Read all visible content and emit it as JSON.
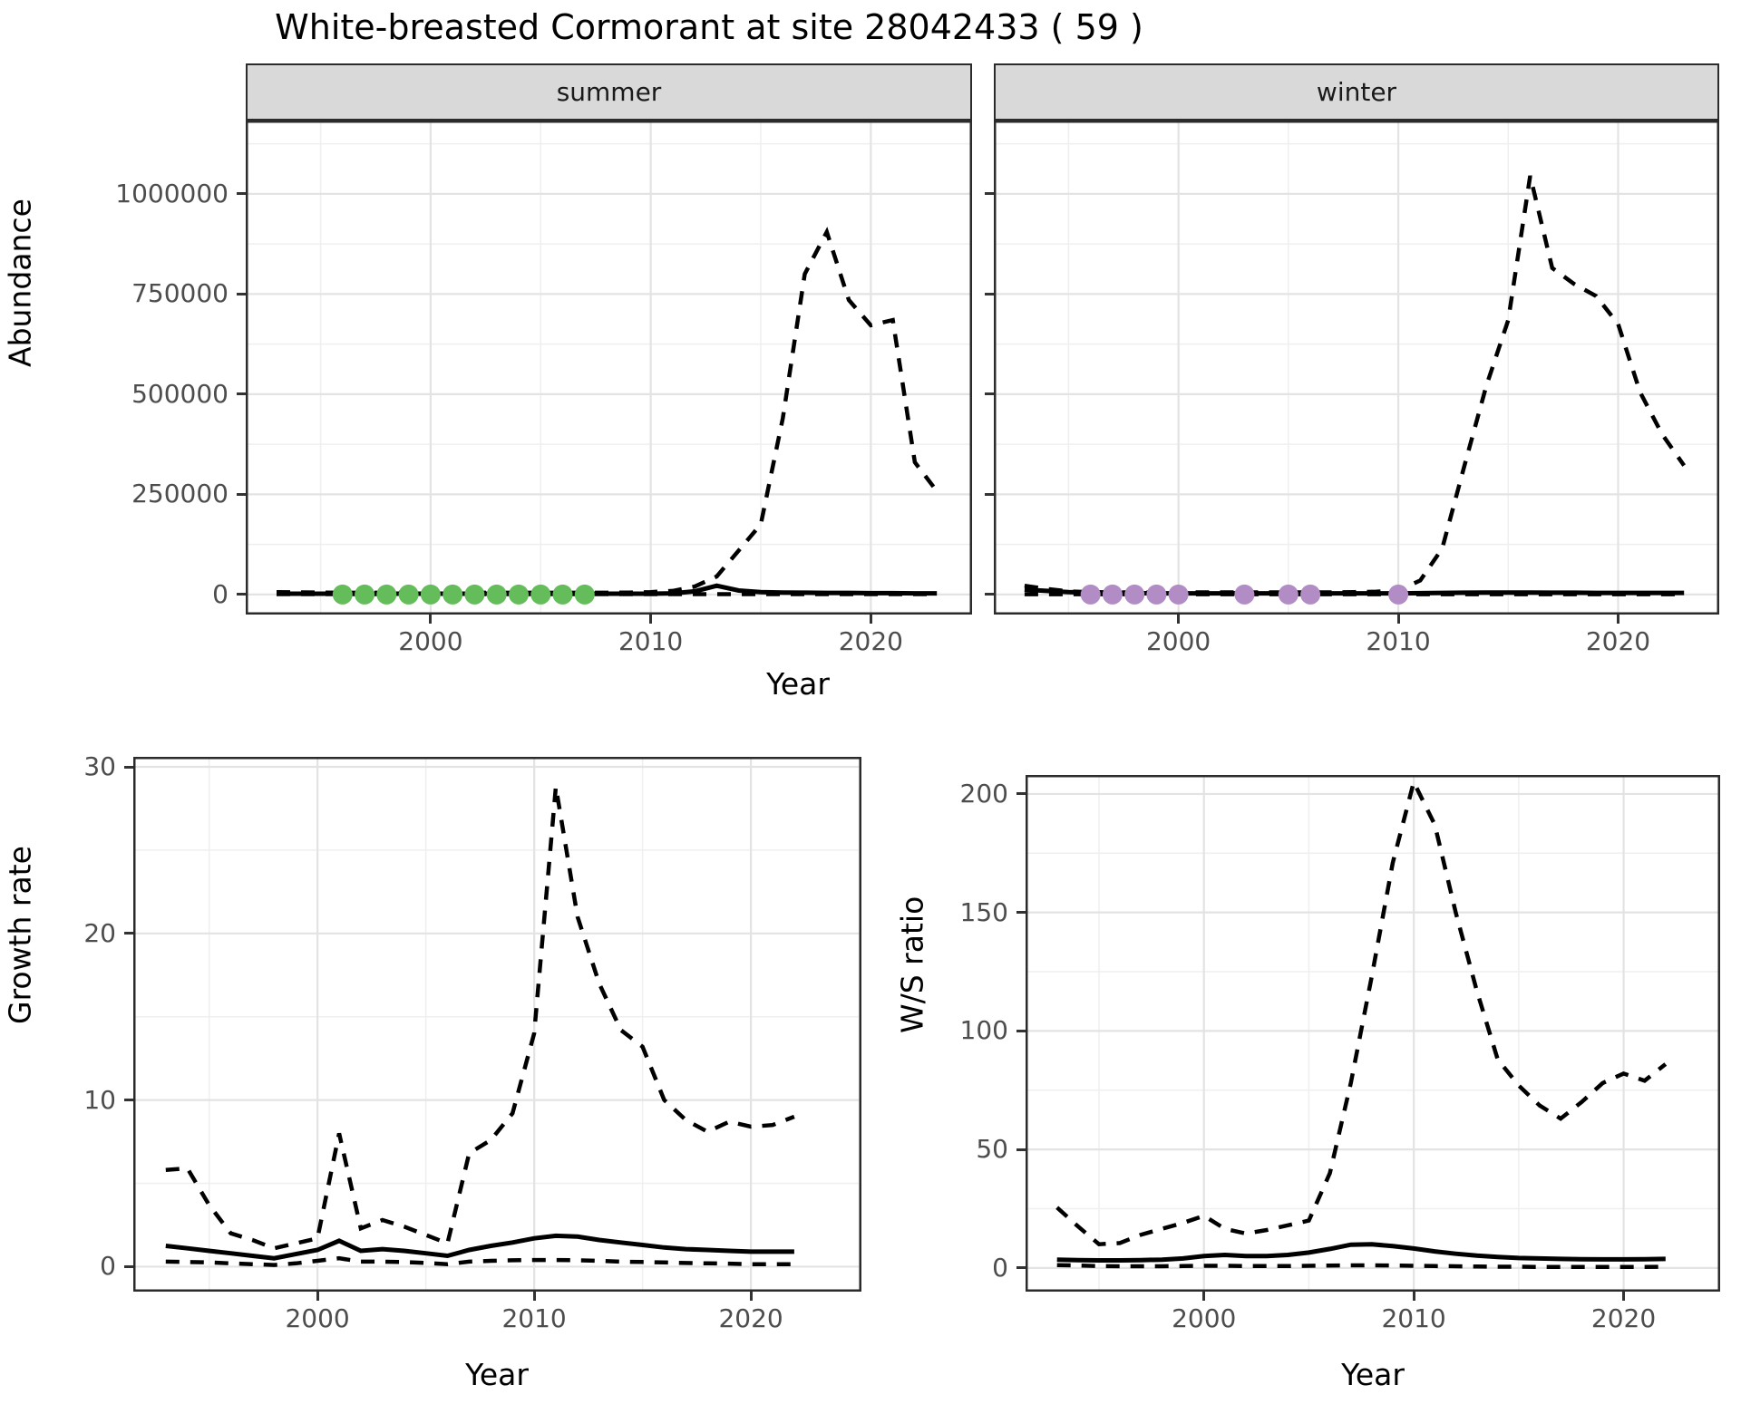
{
  "title": "White-breasted Cormorant at site 28042433 ( 59 )",
  "axis_labels": {
    "abundance": "Abundance",
    "year": "Year",
    "growth": "Growth rate",
    "ws": "W/S ratio"
  },
  "colors": {
    "summer_points": "#65BC5B",
    "winter_points": "#B28CC5",
    "line": "#000000",
    "strip_bg": "#D9D9D9",
    "panel_border": "#2B2B2B",
    "grid_major": "#E3E3E3",
    "grid_minor": "#EFEFEF",
    "tick_text": "#4D4D4D"
  },
  "chart_data": {
    "type": "line",
    "title": "White-breasted Cormorant at site 28042433 ( 59 )",
    "legend": "none",
    "grid": "on",
    "panels": [
      {
        "id": "abundance_summer",
        "strip": "summer",
        "xlabel": "Year",
        "ylabel": "Abundance",
        "x_domain": [
          1991.6,
          2024.6
        ],
        "y_domain": [
          -50000,
          1183000
        ],
        "x_ticks": [
          2000,
          2010,
          2020
        ],
        "x_tick_labels": [
          "2000",
          "2010",
          "2020"
        ],
        "y_ticks": [
          0,
          250000,
          500000,
          750000,
          1000000
        ],
        "y_tick_labels": [
          "0",
          "250000",
          "500000",
          "750000",
          "1000000"
        ],
        "show_y_labels": true,
        "years": [
          1993,
          1994,
          1995,
          1996,
          1997,
          1998,
          1999,
          2000,
          2001,
          2002,
          2003,
          2004,
          2005,
          2006,
          2007,
          2008,
          2009,
          2010,
          2011,
          2012,
          2013,
          2014,
          2015,
          2016,
          2017,
          2018,
          2019,
          2020,
          2021,
          2022,
          2023
        ],
        "series": [
          {
            "name": "upper_ci",
            "style": "dashed",
            "values": [
              6000,
              5500,
              5000,
              4500,
              4500,
              4500,
              4500,
              4500,
              4500,
              4500,
              4500,
              4500,
              4500,
              4500,
              4500,
              4500,
              5000,
              6000,
              9000,
              20000,
              45000,
              110000,
              175000,
              440000,
              800000,
              905000,
              735000,
              672000,
              685000,
              330000,
              258000
            ]
          },
          {
            "name": "lower_ci",
            "style": "dashed",
            "values": [
              800,
              800,
              800,
              800,
              800,
              800,
              800,
              800,
              800,
              800,
              800,
              800,
              800,
              800,
              800,
              800,
              800,
              800,
              800,
              800,
              800,
              800,
              800,
              800,
              800,
              800,
              800,
              800,
              800,
              800,
              800
            ]
          },
          {
            "name": "median",
            "style": "solid",
            "values": [
              2000,
              2000,
              2000,
              2000,
              2000,
              2000,
              2000,
              2000,
              2000,
              2000,
              2000,
              2000,
              2000,
              2000,
              2000,
              2000,
              2000,
              2000,
              3000,
              8000,
              22000,
              10000,
              6000,
              5000,
              4500,
              4000,
              4000,
              3500,
              3500,
              3000,
              3000
            ]
          }
        ],
        "points": {
          "name": "observed_counts_summer",
          "color": "#65BC5B",
          "years": [
            1996,
            1997,
            1998,
            1999,
            2000,
            2001,
            2002,
            2003,
            2004,
            2005,
            2006,
            2007
          ],
          "values": [
            0,
            0,
            0,
            0,
            0,
            0,
            0,
            0,
            0,
            0,
            0,
            0
          ]
        }
      },
      {
        "id": "abundance_winter",
        "strip": "winter",
        "xlabel": "Year",
        "ylabel": "Abundance",
        "x_domain": [
          1991.6,
          2024.6
        ],
        "y_domain": [
          -50000,
          1183000
        ],
        "x_ticks": [
          2000,
          2010,
          2020
        ],
        "x_tick_labels": [
          "2000",
          "2010",
          "2020"
        ],
        "y_ticks": [
          0,
          250000,
          500000,
          750000,
          1000000
        ],
        "y_tick_labels": [
          "0",
          "250000",
          "500000",
          "750000",
          "1000000"
        ],
        "show_y_labels": false,
        "years": [
          1993,
          1994,
          1995,
          1996,
          1997,
          1998,
          1999,
          2000,
          2001,
          2002,
          2003,
          2004,
          2005,
          2006,
          2007,
          2008,
          2009,
          2010,
          2011,
          2012,
          2013,
          2014,
          2015,
          2016,
          2017,
          2018,
          2019,
          2020,
          2021,
          2022,
          2023
        ],
        "series": [
          {
            "name": "upper_ci",
            "style": "dashed",
            "values": [
              22000,
              14000,
              8000,
              6000,
              5500,
              5500,
              5500,
              5500,
              5500,
              5500,
              5500,
              5500,
              5500,
              5500,
              5500,
              6000,
              7000,
              10000,
              35000,
              115000,
              320000,
              520000,
              685000,
              1045000,
              815000,
              775000,
              745000,
              675000,
              505000,
              400000,
              322000
            ]
          },
          {
            "name": "lower_ci",
            "style": "dashed",
            "values": [
              700,
              700,
              700,
              700,
              700,
              700,
              700,
              700,
              700,
              700,
              700,
              700,
              700,
              700,
              700,
              700,
              700,
              700,
              700,
              700,
              700,
              700,
              700,
              700,
              700,
              700,
              700,
              700,
              700,
              700,
              700
            ]
          },
          {
            "name": "median",
            "style": "solid",
            "values": [
              12000,
              9000,
              6000,
              4500,
              4000,
              3500,
              3000,
              3000,
              3000,
              3000,
              3000,
              3000,
              3000,
              3000,
              3000,
              3000,
              3000,
              3000,
              3500,
              4000,
              4500,
              5000,
              5000,
              5000,
              4500,
              4500,
              4000,
              4000,
              4000,
              4000,
              4000
            ]
          }
        ],
        "points": {
          "name": "observed_counts_winter",
          "color": "#B28CC5",
          "years": [
            1996,
            1997,
            1998,
            1999,
            2000,
            2003,
            2005,
            2006,
            2010
          ],
          "values": [
            0,
            0,
            0,
            0,
            0,
            0,
            0,
            0,
            0
          ]
        }
      },
      {
        "id": "growth",
        "strip": null,
        "xlabel": "Year",
        "ylabel": "Growth rate",
        "x_domain": [
          1991.5,
          2025.1
        ],
        "y_domain": [
          -1.5,
          30.6
        ],
        "x_ticks": [
          2000,
          2010,
          2020
        ],
        "x_tick_labels": [
          "2000",
          "2010",
          "2020"
        ],
        "y_ticks": [
          0,
          10,
          20,
          30
        ],
        "y_tick_labels": [
          "0",
          "10",
          "20",
          "30"
        ],
        "show_y_labels": true,
        "years": [
          1993,
          1994,
          1995,
          1996,
          1997,
          1998,
          1999,
          2000,
          2001,
          2002,
          2003,
          2004,
          2005,
          2006,
          2007,
          2008,
          2009,
          2010,
          2011,
          2012,
          2013,
          2014,
          2015,
          2016,
          2017,
          2018,
          2019,
          2020,
          2021,
          2022
        ],
        "series": [
          {
            "name": "upper_ci",
            "style": "dashed",
            "values": [
              5.8,
              5.9,
              3.7,
              2.0,
              1.6,
              1.1,
              1.4,
              1.7,
              8.0,
              2.3,
              2.8,
              2.4,
              1.9,
              1.4,
              6.8,
              7.6,
              9.2,
              14.0,
              28.8,
              21.0,
              17.0,
              14.2,
              13.2,
              10.0,
              8.8,
              8.1,
              8.7,
              8.4,
              8.5,
              9.0
            ]
          },
          {
            "name": "lower_ci",
            "style": "dashed",
            "values": [
              0.3,
              0.28,
              0.25,
              0.2,
              0.15,
              0.1,
              0.2,
              0.35,
              0.5,
              0.3,
              0.3,
              0.28,
              0.22,
              0.15,
              0.3,
              0.35,
              0.38,
              0.4,
              0.4,
              0.38,
              0.35,
              0.3,
              0.28,
              0.25,
              0.22,
              0.2,
              0.18,
              0.15,
              0.15,
              0.15
            ]
          },
          {
            "name": "median",
            "style": "solid",
            "values": [
              1.25,
              1.1,
              0.95,
              0.8,
              0.65,
              0.5,
              0.75,
              1.0,
              1.55,
              0.95,
              1.05,
              0.95,
              0.8,
              0.65,
              1.0,
              1.25,
              1.45,
              1.7,
              1.85,
              1.8,
              1.6,
              1.45,
              1.3,
              1.15,
              1.05,
              1.0,
              0.95,
              0.9,
              0.9,
              0.9
            ]
          }
        ],
        "points": null
      },
      {
        "id": "ws",
        "strip": null,
        "xlabel": "Year",
        "ylabel": "W/S ratio",
        "x_domain": [
          1991.5,
          2024.6
        ],
        "y_domain": [
          -10,
          208
        ],
        "x_ticks": [
          2000,
          2010,
          2020
        ],
        "x_tick_labels": [
          "2000",
          "2010",
          "2020"
        ],
        "y_ticks": [
          0,
          50,
          100,
          150,
          200
        ],
        "y_tick_labels": [
          "0",
          "50",
          "100",
          "150",
          "200"
        ],
        "show_y_labels": true,
        "years": [
          1993,
          1994,
          1995,
          1996,
          1997,
          1998,
          1999,
          2000,
          2001,
          2002,
          2003,
          2004,
          2005,
          2006,
          2007,
          2008,
          2009,
          2010,
          2011,
          2012,
          2013,
          2014,
          2015,
          2016,
          2017,
          2018,
          2019,
          2020,
          2021,
          2022
        ],
        "series": [
          {
            "name": "upper_ci",
            "style": "dashed",
            "values": [
              25.5,
              17.5,
              10,
              10.5,
              14,
              16.5,
              19,
              22,
              16.5,
              14.5,
              16,
              18,
              20,
              40,
              78,
              123,
              171,
              205,
              187,
              150,
              117,
              88,
              77,
              68.5,
              63,
              70,
              78,
              82,
              79,
              86
            ]
          },
          {
            "name": "lower_ci",
            "style": "dashed",
            "values": [
              1.2,
              1.0,
              0.8,
              0.7,
              0.7,
              0.7,
              0.8,
              0.9,
              0.9,
              0.8,
              0.8,
              0.8,
              0.9,
              1.0,
              1.1,
              1.1,
              1.0,
              0.9,
              0.8,
              0.7,
              0.6,
              0.5,
              0.5,
              0.4,
              0.4,
              0.4,
              0.4,
              0.4,
              0.4,
              0.5
            ]
          },
          {
            "name": "median",
            "style": "solid",
            "values": [
              3.5,
              3.3,
              3.2,
              3.2,
              3.3,
              3.5,
              4.0,
              5.0,
              5.5,
              5.0,
              5.0,
              5.5,
              6.5,
              8.0,
              9.8,
              10.0,
              9.2,
              8.2,
              7.0,
              6.0,
              5.2,
              4.6,
              4.2,
              4.0,
              3.8,
              3.7,
              3.6,
              3.6,
              3.7,
              3.8
            ]
          }
        ],
        "points": null
      }
    ]
  }
}
